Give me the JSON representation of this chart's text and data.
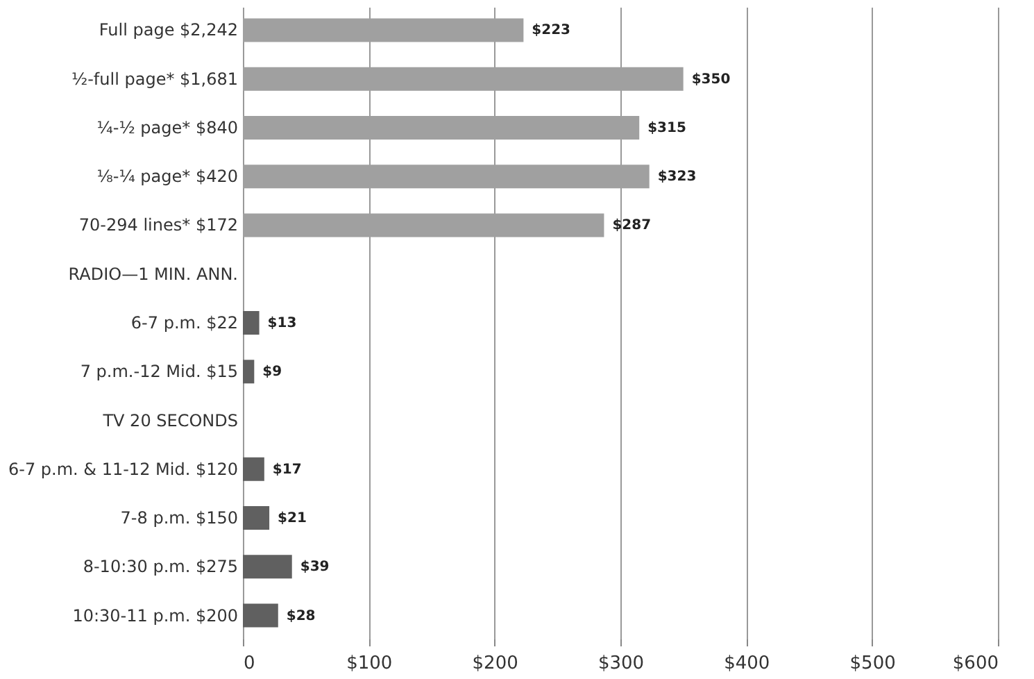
{
  "chart_data": {
    "type": "bar",
    "orientation": "horizontal",
    "categories": [
      "Full page $2,242",
      "½-full page* $1,681",
      "¼-½ page* $840",
      "⅛-¼ page* $420",
      "70-294 lines* $172",
      "RADIO—1 MIN. ANN.",
      "6-7 p.m. $22",
      "7 p.m.-12 Mid. $15",
      "TV 20 SECONDS",
      "6-7 p.m. & 11-12 Mid. $120",
      "7-8 p.m. $150",
      "8-10:30 p.m. $275",
      "10:30-11 p.m. $200"
    ],
    "values": [
      223,
      350,
      315,
      323,
      287,
      null,
      13,
      9,
      null,
      17,
      21,
      39,
      28
    ],
    "value_labels": [
      "$223",
      "$350",
      "$315",
      "$323",
      "$287",
      null,
      "$13",
      "$9",
      null,
      "$17",
      "$21",
      "$39",
      "$28"
    ],
    "colors": [
      "#a0a0a0",
      "#a0a0a0",
      "#a0a0a0",
      "#a0a0a0",
      "#a0a0a0",
      null,
      "#606060",
      "#606060",
      null,
      "#606060",
      "#606060",
      "#606060",
      "#606060"
    ],
    "xlim": [
      0,
      600
    ],
    "xticks": [
      0,
      {
        "value": 100,
        "label": "$100"
      },
      {
        "value": 200,
        "label": "$200"
      },
      {
        "value": 300,
        "label": "$300"
      },
      {
        "value": 400,
        "label": "$400"
      },
      {
        "value": 500,
        "label": "$500"
      },
      {
        "value": 600,
        "label": "$600"
      }
    ],
    "grid": "x"
  }
}
